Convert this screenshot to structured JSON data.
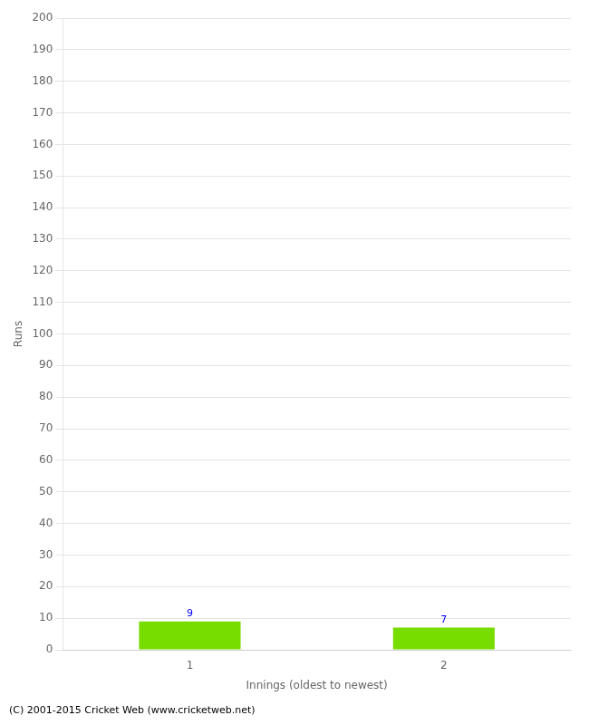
{
  "chart_data": {
    "type": "bar",
    "categories": [
      "1",
      "2"
    ],
    "values": [
      9,
      7
    ],
    "color": "#77dd00",
    "xlabel": "Innings (oldest to newest)",
    "ylabel": "Runs",
    "ylim": [
      0,
      200
    ],
    "yticks": [
      0,
      10,
      20,
      30,
      40,
      50,
      60,
      70,
      80,
      90,
      100,
      110,
      120,
      130,
      140,
      150,
      160,
      170,
      180,
      190,
      200
    ],
    "grid": true,
    "data_labels": true,
    "annotations": [
      "(C) 2001-2015 Cricket Web (www.cricketweb.net)"
    ]
  }
}
